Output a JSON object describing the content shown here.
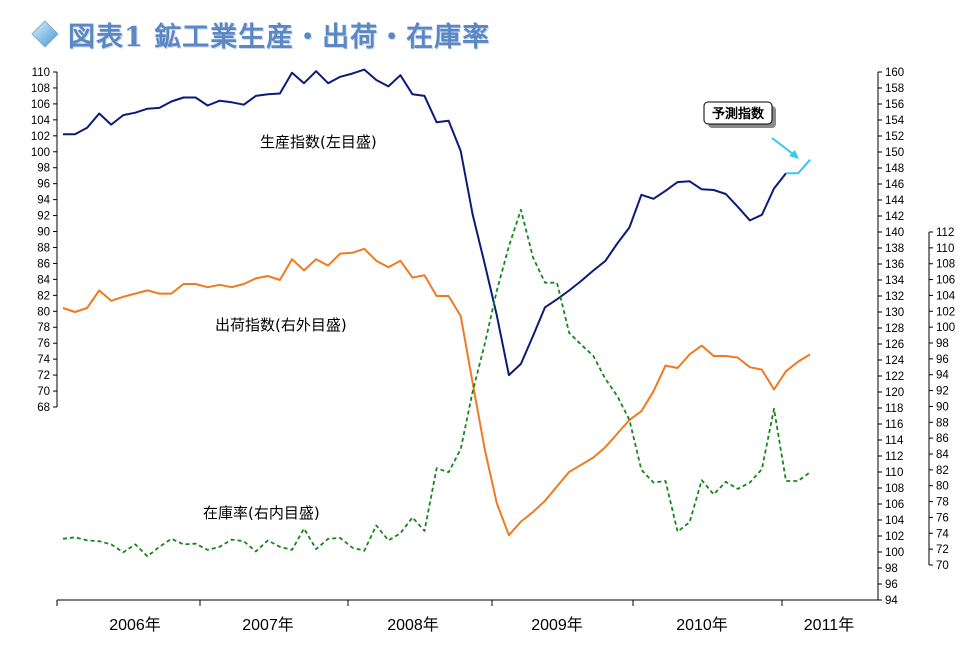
{
  "header": {
    "title": "図表1 鉱工業生産・出荷・在庫率"
  },
  "colors": {
    "production": "#0b1b78",
    "shipment": "#ef7a22",
    "inventory": "#17861a",
    "forecast": "#35c9f0",
    "title": "#5b87c4"
  },
  "chart_data": {
    "type": "line",
    "title": "",
    "x_labels": [
      "2006年",
      "2007年",
      "2008年",
      "2009年",
      "2010年",
      "2011年"
    ],
    "axes": {
      "left": {
        "ylim": [
          68,
          110
        ],
        "ticks": [
          68,
          70,
          72,
          74,
          76,
          78,
          80,
          82,
          84,
          86,
          88,
          90,
          92,
          94,
          96,
          98,
          100,
          102,
          104,
          106,
          108,
          110
        ]
      },
      "right_outer": {
        "ylim": [
          94,
          160
        ],
        "ticks": [
          94,
          96,
          98,
          100,
          102,
          104,
          106,
          108,
          110,
          112,
          114,
          116,
          118,
          120,
          122,
          124,
          126,
          128,
          130,
          132,
          134,
          136,
          138,
          140,
          142,
          144,
          146,
          148,
          150,
          152,
          154,
          156,
          158,
          160
        ]
      },
      "right_inner": {
        "ylim": [
          70,
          112
        ],
        "ticks": [
          70,
          72,
          74,
          76,
          78,
          80,
          82,
          84,
          86,
          88,
          90,
          92,
          94,
          96,
          98,
          100,
          102,
          104,
          106,
          108,
          110,
          112
        ]
      }
    },
    "series": [
      {
        "name": "生産指数(左目盛)",
        "axis": "left",
        "style": "solid",
        "color": "#0b1b78",
        "values": [
          102.2,
          102.2,
          103,
          104.8,
          103.4,
          104.6,
          104.9,
          105.4,
          105.5,
          106.3,
          106.8,
          106.8,
          105.8,
          106.4,
          106.2,
          105.9,
          107.0,
          107.2,
          107.3,
          109.9,
          108.6,
          110.1,
          108.6,
          109.4,
          109.8,
          110.3,
          109.0,
          108.2,
          109.6,
          107.2,
          107,
          103.7,
          103.9,
          100.1,
          92.1,
          85.9,
          79.5,
          72.0,
          73.4,
          76.9,
          80.5,
          81.5,
          82.6,
          83.8,
          85.1,
          86.3,
          88.5,
          90.5,
          94.6,
          94.1,
          95.1,
          96.2,
          96.3,
          95.3,
          95.2,
          94.7,
          93.1,
          91.4,
          92.1,
          95.4,
          97.3
        ]
      },
      {
        "name": "出荷指数(右外目盛)",
        "axis": "right_outer",
        "style": "solid",
        "color": "#ef7a22",
        "values": [
          130.5,
          130.0,
          130.5,
          132.7,
          131.4,
          131.9,
          132.3,
          132.7,
          132.3,
          132.3,
          133.5,
          133.5,
          133.1,
          133.4,
          133.1,
          133.5,
          134.2,
          134.5,
          134.0,
          136.6,
          135.2,
          136.6,
          135.8,
          137.3,
          137.4,
          137.9,
          136.4,
          135.6,
          136.4,
          134.3,
          134.6,
          132.0,
          132.0,
          129.5,
          121.1,
          112.8,
          106.1,
          102.1,
          103.8,
          105.0,
          106.4,
          108.2,
          110.0,
          110.9,
          111.8,
          113.1,
          114.8,
          116.5,
          117.6,
          120.1,
          123.3,
          123.0,
          124.7,
          125.8,
          124.5,
          124.5,
          124.3,
          123.1,
          122.8,
          120.3,
          122.6,
          123.8,
          124.7
        ]
      },
      {
        "name": "在庫率(右内目盛)",
        "axis": "right_inner",
        "style": "dashed",
        "color": "#17861a",
        "values": [
          73.3,
          73.5,
          73.1,
          73.0,
          72.6,
          71.6,
          72.6,
          71.1,
          72.3,
          73.3,
          72.6,
          72.7,
          71.9,
          72.3,
          73.2,
          73.0,
          71.7,
          73.1,
          72.3,
          71.9,
          74.6,
          72.0,
          73.3,
          73.4,
          72.2,
          71.8,
          75.0,
          73.1,
          74.0,
          76.0,
          74.3,
          82.2,
          81.7,
          84.6,
          91.9,
          97.9,
          104.6,
          110.2,
          114.8,
          108.8,
          105.6,
          105.6,
          99.3,
          97.8,
          96.4,
          93.5,
          91.3,
          88.3,
          82.0,
          80.4,
          80.6,
          74.2,
          75.4,
          80.7,
          78.9,
          80.5,
          79.6,
          80.4,
          82.1,
          89.7,
          80.6,
          80.6,
          81.7
        ]
      },
      {
        "name": "予測指数",
        "axis": "left",
        "style": "solid",
        "color": "#35c9f0",
        "values": [
          97.3,
          97.3,
          99.0
        ]
      }
    ],
    "annotations": {
      "production_label": "生産指数(左目盛)",
      "shipment_label": "出荷指数(右外目盛)",
      "inventory_label": "在庫率(右内目盛)",
      "forecast_label": "予測指数"
    },
    "legend": "inline-labels",
    "grid": false
  }
}
